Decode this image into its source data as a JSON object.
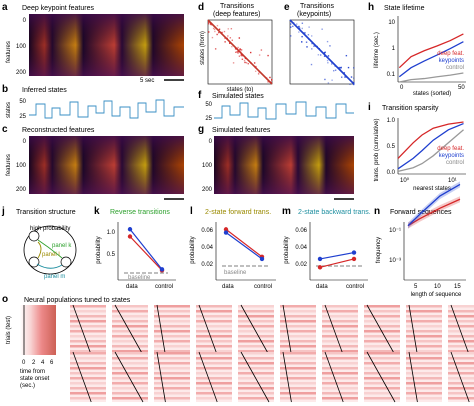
{
  "panels": {
    "a": {
      "letter": "a",
      "title": "Deep keypoint features",
      "ylabel": "features",
      "yticks": [
        "0",
        "100",
        "200"
      ],
      "scale": "5 sec"
    },
    "b": {
      "letter": "b",
      "title": "Inferred states",
      "ylabel": "states",
      "yticks": [
        "50",
        "25"
      ]
    },
    "c": {
      "letter": "c",
      "title": "Reconstructed features",
      "ylabel": "features",
      "yticks": [
        "0",
        "100",
        "200"
      ]
    },
    "d": {
      "letter": "d",
      "title": "Transitions",
      "subtitle": "(deep features)",
      "ylabel": "states (from)",
      "xlabel": "states (to)"
    },
    "e": {
      "letter": "e",
      "title": "Transitions",
      "subtitle": "(keypoints)"
    },
    "f": {
      "letter": "f",
      "title": "Simulated states",
      "yticks": [
        "50",
        "25"
      ]
    },
    "g": {
      "letter": "g",
      "title": "Simulated features",
      "yticks": [
        "0",
        "100",
        "200"
      ]
    },
    "h": {
      "letter": "h",
      "title": "State lifetime",
      "ylabel": "lifetime (sec.)",
      "xlabel": "states (sorted)",
      "yticks": [
        "10",
        "1",
        "0.1"
      ],
      "xticks": [
        "0",
        "50"
      ]
    },
    "i": {
      "letter": "i",
      "title": "Transition sparsity",
      "ylabel": "trans. prob (cumulative)",
      "xlabel": "nearest states",
      "yticks": [
        "1.0",
        "0.5",
        "0.0"
      ],
      "xticks": [
        "10⁰",
        "10¹"
      ]
    },
    "j": {
      "letter": "j",
      "title": "Transition structure",
      "high": "high probability",
      "pA": "panel k",
      "pB": "panel l",
      "pC": "panel m"
    },
    "k": {
      "letter": "k",
      "title": "Reverse transitions",
      "ylabel": "probability",
      "yticks": [
        "1.0",
        "0.5"
      ],
      "baseline": "baseline",
      "xticks": [
        "data",
        "control"
      ]
    },
    "l": {
      "letter": "l",
      "title": "2-state forward trans.",
      "ylabel": "probability",
      "yticks": [
        "0.06",
        "0.04",
        "0.02"
      ],
      "baseline": "baseline",
      "xticks": [
        "data",
        "control"
      ]
    },
    "m": {
      "letter": "m",
      "title": "2-state backward trans.",
      "ylabel": "probability",
      "yticks": [
        "0.06",
        "0.04",
        "0.02"
      ],
      "xticks": [
        "data",
        "control"
      ]
    },
    "n": {
      "letter": "n",
      "title": "Forward sequences",
      "ylabel": "frequency",
      "xlabel": "length of sequence",
      "yticks": [
        "10⁻¹",
        "10⁻³"
      ],
      "xticks": [
        "5",
        "10",
        "15"
      ]
    },
    "o": {
      "letter": "o",
      "title": "Neural populations tuned to states",
      "ylabel": "trials (test)",
      "xlabel1": "time from",
      "xlabel2": "state onset",
      "xlabel3": "(sec.)",
      "xticks": [
        "0",
        "2",
        "4",
        "6"
      ]
    }
  },
  "legend": {
    "deep": "deep feat.",
    "keypoints": "keypoints",
    "control": "control"
  },
  "colors": {
    "deep": "#d62728",
    "keypoints": "#1f3fcf",
    "control": "#999999",
    "trace": "#3a8fc4",
    "j_k": "#2ca02c",
    "j_l": "#9a8a00",
    "j_m": "#1f8fa0"
  },
  "chart_data": [
    {
      "type": "line",
      "panel": "h",
      "title": "State lifetime",
      "x": [
        1,
        10,
        20,
        30,
        40,
        50
      ],
      "series": [
        {
          "name": "deep feat.",
          "values": [
            0.3,
            0.7,
            1.1,
            1.6,
            2.4,
            4.0
          ]
        },
        {
          "name": "keypoints",
          "values": [
            0.15,
            0.3,
            0.5,
            0.8,
            1.3,
            2.2
          ]
        },
        {
          "name": "control",
          "values": [
            0.1,
            0.12,
            0.13,
            0.15,
            0.17,
            0.2
          ]
        }
      ]
    },
    {
      "type": "line",
      "panel": "i",
      "title": "Transition sparsity",
      "x": [
        1,
        2,
        3,
        5,
        10,
        20
      ],
      "series": [
        {
          "name": "deep feat.",
          "values": [
            0.3,
            0.6,
            0.75,
            0.88,
            0.96,
            1.0
          ]
        },
        {
          "name": "keypoints",
          "values": [
            0.1,
            0.3,
            0.45,
            0.65,
            0.85,
            0.97
          ]
        },
        {
          "name": "control",
          "values": [
            0.05,
            0.12,
            0.2,
            0.35,
            0.6,
            0.85
          ]
        }
      ]
    },
    {
      "type": "line",
      "panel": "k",
      "categories": [
        "data",
        "control"
      ],
      "series": [
        {
          "name": "deep feat.",
          "values": [
            0.9,
            0.2
          ]
        },
        {
          "name": "keypoints",
          "values": [
            1.05,
            0.22
          ]
        }
      ]
    },
    {
      "type": "line",
      "panel": "l",
      "categories": [
        "data",
        "control"
      ],
      "series": [
        {
          "name": "deep feat.",
          "values": [
            0.058,
            0.032
          ]
        },
        {
          "name": "keypoints",
          "values": [
            0.055,
            0.03
          ]
        }
      ]
    },
    {
      "type": "line",
      "panel": "m",
      "categories": [
        "data",
        "control"
      ],
      "series": [
        {
          "name": "deep feat.",
          "values": [
            0.022,
            0.03
          ]
        },
        {
          "name": "keypoints",
          "values": [
            0.03,
            0.036
          ]
        }
      ]
    },
    {
      "type": "line",
      "panel": "n",
      "x": [
        2,
        5,
        10,
        15
      ],
      "series": [
        {
          "name": "deep feat.",
          "values": [
            0.3,
            0.1,
            0.02,
            0.005
          ]
        },
        {
          "name": "keypoints",
          "values": [
            0.3,
            0.05,
            0.003,
            0.0005
          ]
        }
      ]
    }
  ]
}
